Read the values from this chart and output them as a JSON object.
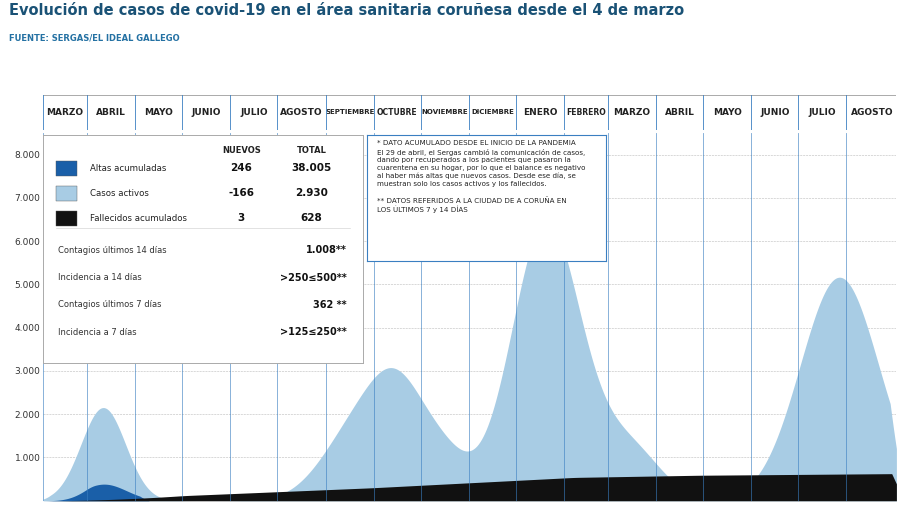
{
  "title": "Evolución de casos de covid-19 en el área sanitaria coruñesa desde el 4 de marzo",
  "subtitle": "FUENTE: SERGAS/EL IDEAL GALLEGO",
  "title_color": "#1a5276",
  "subtitle_color": "#2471a3",
  "ylim": [
    0,
    8500
  ],
  "yticks": [
    1000,
    2000,
    3000,
    4000,
    5000,
    6000,
    7000,
    8000
  ],
  "month_labels": [
    "MARZO",
    "ABRIL",
    "MAYO",
    "JUNIO",
    "JULIO",
    "AGOSTO",
    "SEPTIEMBRE",
    "OCTUBRE",
    "NOVIEMBRE",
    "DICIEMBRE",
    "ENERO",
    "FEBRERO",
    "MARZO",
    "ABRIL",
    "MAYO",
    "JUNIO",
    "JULIO",
    "AGOSTO"
  ],
  "color_altas": "#1a5fa8",
  "color_activos": "#a8cce4",
  "color_fallecidos": "#111111",
  "note_text": "* DATO ACUMULADO DESDE EL INICIO DE LA PANDEMIA\nEl 29 de abril, el Sergas cambió la comunicación de casos,\ndando por recuperados a los pacientes que pasaron la\ncuarentena en su hogar, por lo que el balance es negativo\nal haber más altas que nuevos casos. Desde ese día, se\nmuestran solo los casos activos y los fallecidos.\n\n** DATOS REFERIDOS A LA CIUDAD DE A CORUÑA EN\nLOS ÚLTIMOS 7 y 14 DÍAS"
}
